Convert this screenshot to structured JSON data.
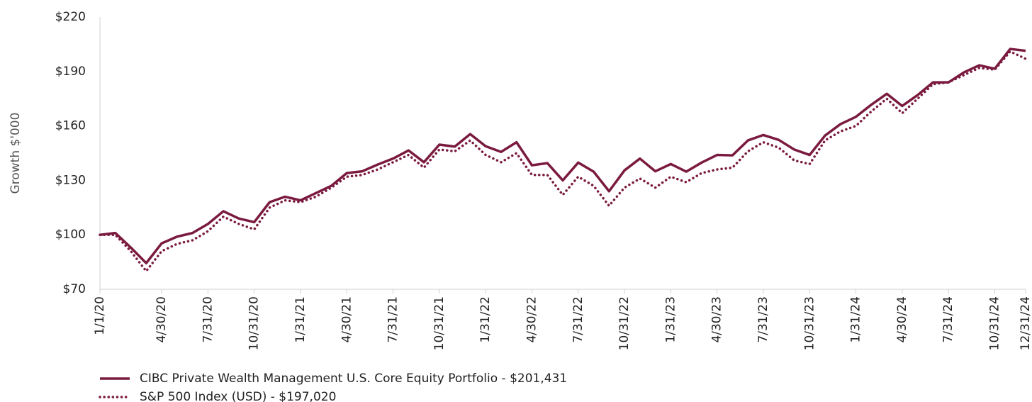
{
  "chart_data": {
    "type": "line",
    "y_label": "Growth $'000",
    "categories": [
      "1/1/20",
      null,
      null,
      null,
      "4/30/20",
      null,
      null,
      "7/31/20",
      null,
      null,
      "10/31/20",
      null,
      null,
      "1/31/21",
      null,
      null,
      "4/30/21",
      null,
      null,
      "7/31/21",
      null,
      null,
      "10/31/21",
      null,
      null,
      "1/31/22",
      null,
      null,
      "4/30/22",
      null,
      null,
      "7/31/22",
      null,
      null,
      "10/31/22",
      null,
      null,
      "1/31/23",
      null,
      null,
      "4/30/23",
      null,
      null,
      "7/31/23",
      null,
      null,
      "10/31/23",
      null,
      null,
      "1/31/24",
      null,
      null,
      "4/30/24",
      null,
      null,
      "7/31/24",
      null,
      null,
      "10/31/24",
      null,
      "12/31/24"
    ],
    "series": [
      {
        "name": "CIBC Private Wealth Management U.S. Core Equity Portfolio - $201,431",
        "color": "#7a1a3f",
        "dash": "solid",
        "values": [
          100,
          101,
          93,
          84.4,
          95.3,
          99,
          101,
          106,
          113,
          109,
          107,
          118,
          121,
          119,
          123,
          127,
          134,
          135,
          138.7,
          142,
          146.5,
          140,
          149.7,
          148.6,
          155.5,
          148.8,
          145.7,
          151,
          138.3,
          139.5,
          130,
          139.8,
          134.8,
          124,
          135.5,
          142,
          135,
          139,
          134.8,
          139.8,
          144,
          143.8,
          152,
          155,
          152.3,
          147,
          144,
          154.7,
          161,
          165,
          171.7,
          177.7,
          171,
          177,
          184,
          184,
          189.5,
          193.4,
          191.5,
          202.4,
          201.4
        ]
      },
      {
        "name": "S&P 500 Index (USD) - $197,020",
        "color": "#7a1a3f",
        "dash": "dotted",
        "values": [
          100,
          100,
          91,
          80,
          91,
          95,
          97,
          102,
          110,
          106,
          103,
          115,
          119,
          118,
          121,
          126,
          132,
          133,
          136,
          140,
          144,
          137,
          147,
          146,
          152,
          144,
          140,
          145,
          133,
          133,
          122,
          132,
          127,
          116,
          126,
          131,
          126,
          132,
          129,
          134,
          136,
          137,
          146,
          151,
          148,
          141,
          139,
          152,
          157,
          160,
          168,
          175,
          167,
          175,
          183,
          184,
          188,
          192,
          191,
          201,
          197
        ]
      }
    ],
    "ylim": [
      70,
      220
    ],
    "yticks": [
      {
        "value": 70,
        "label": "$70"
      },
      {
        "value": 100,
        "label": "$100"
      },
      {
        "value": 130,
        "label": "$130"
      },
      {
        "value": 160,
        "label": "$160"
      },
      {
        "value": 190,
        "label": "$190"
      },
      {
        "value": 220,
        "label": "$220"
      }
    ],
    "legend": "bottom-left",
    "grid": false
  }
}
